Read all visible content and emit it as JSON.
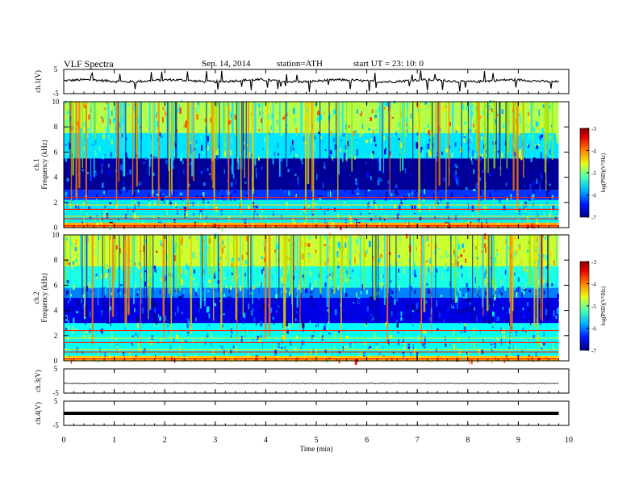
{
  "header": {
    "title": "VLF  Spectra",
    "date": "Sep. 14, 2014",
    "station": "station=ATH",
    "start": "start  UT  =   23: 10: 0"
  },
  "chart_data": [
    {
      "type": "line",
      "panel": "ch1-waveform",
      "ylabel": "ch.1(V)",
      "yticks": [
        "5",
        "-5"
      ],
      "ylim": [
        -5,
        5
      ],
      "xlim": [
        0,
        10
      ],
      "baseline": 0.3,
      "color": "#000000",
      "note_level": "waveform near +0.3 V with frequent spikes"
    },
    {
      "type": "heatmap",
      "panel": "ch1-spectrogram",
      "ylabel_channel": "ch.1",
      "ylabel": "Frequency  (kHz)",
      "yticks": [
        "0",
        "2",
        "4",
        "6",
        "8",
        "10"
      ],
      "ylim": [
        0,
        10
      ],
      "xlim": [
        0,
        9.8
      ],
      "colorbar": {
        "label": "log(PSD)(V²/Hz)",
        "ticks": [
          "-3",
          "-4",
          "-5",
          "-6",
          "-7"
        ],
        "range": [
          -7,
          -3
        ]
      },
      "bands": [
        {
          "f0": 0.0,
          "f1": 0.4,
          "level": -4.0
        },
        {
          "f0": 0.4,
          "f1": 2.2,
          "level": -5.6
        },
        {
          "f0": 2.2,
          "f1": 3.0,
          "level": -6.3
        },
        {
          "f0": 3.0,
          "f1": 5.5,
          "level": -6.9
        },
        {
          "f0": 5.5,
          "f1": 7.5,
          "level": -5.6
        },
        {
          "f0": 7.5,
          "f1": 10.0,
          "level": -4.8
        }
      ]
    },
    {
      "type": "heatmap",
      "panel": "ch2-spectrogram",
      "ylabel_channel": "ch.2",
      "ylabel": "Frequency  (kHz)",
      "yticks": [
        "0",
        "2",
        "4",
        "6",
        "8",
        "10"
      ],
      "ylim": [
        0,
        10
      ],
      "xlim": [
        0,
        9.8
      ],
      "colorbar": {
        "label": "log(PSD)(V²/Hz)",
        "ticks": [
          "-3",
          "-4",
          "-5",
          "-6",
          "-7"
        ],
        "range": [
          -7,
          -3
        ]
      },
      "bands": [
        {
          "f0": 0.0,
          "f1": 0.4,
          "level": -4.2
        },
        {
          "f0": 0.4,
          "f1": 3.0,
          "level": -5.5
        },
        {
          "f0": 3.0,
          "f1": 5.0,
          "level": -6.6
        },
        {
          "f0": 5.0,
          "f1": 5.8,
          "level": -6.0
        },
        {
          "f0": 5.8,
          "f1": 7.5,
          "level": -5.4
        },
        {
          "f0": 7.5,
          "f1": 10.0,
          "level": -4.7
        }
      ]
    },
    {
      "type": "line",
      "panel": "ch3-waveform",
      "ylabel": "ch.3(V)",
      "yticks": [
        "5",
        "-5"
      ],
      "ylim": [
        -5,
        5
      ],
      "xlim": [
        0,
        9.8
      ],
      "baseline": -1.0,
      "color": "#000000"
    },
    {
      "type": "line",
      "panel": "ch4-waveform",
      "ylabel": "ch.4(V)",
      "yticks": [
        "5",
        "-5"
      ],
      "ylim": [
        -5,
        5
      ],
      "xlim": [
        0,
        9.8
      ],
      "baseline": 0.0,
      "color": "#000000"
    }
  ],
  "xaxis": {
    "label": "Time  (min)",
    "ticks": [
      "0",
      "1",
      "2",
      "3",
      "4",
      "5",
      "6",
      "7",
      "8",
      "9",
      "10"
    ],
    "range": [
      0,
      10
    ]
  }
}
